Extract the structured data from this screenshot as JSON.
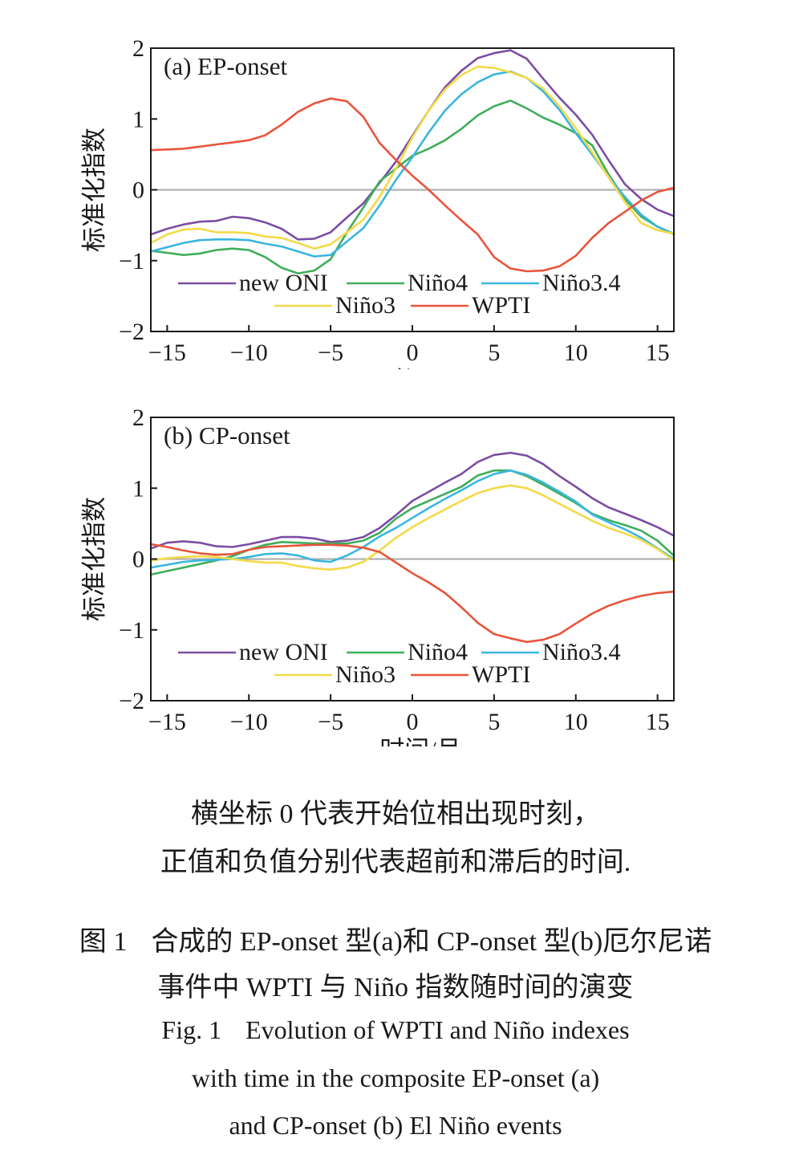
{
  "colors": {
    "new ONI": "#7b4ea3",
    "Niño4": "#3fae5a",
    "Niño3.4": "#3ab6df",
    "Niño3": "#f2da48",
    "WPTI": "#e8553c",
    "zero_line": "#aaaaaa",
    "axis": "#1a1a1a"
  },
  "chart_data": [
    {
      "type": "line",
      "panel_label": "(a) EP-onset",
      "xlabel": "时间/月",
      "ylabel": "标准化指数",
      "xlim": [
        -16,
        16
      ],
      "ylim": [
        -2,
        2
      ],
      "xticks": [
        "−15",
        "−10",
        "−5",
        "0",
        "5",
        "10",
        "15"
      ],
      "xtick_values": [
        -15,
        -10,
        -5,
        0,
        5,
        10,
        15
      ],
      "yticks": [
        "2",
        "1",
        "0",
        "−1",
        "−2"
      ],
      "ytick_values": [
        2,
        1,
        0,
        -1,
        -2
      ],
      "zero_line": true,
      "legend": {
        "placement": "bottom",
        "rows": [
          [
            "new ONI",
            "Niño4",
            "Niño3.4"
          ],
          [
            "Niño3",
            "WPTI"
          ]
        ]
      },
      "x": [
        -16,
        -15,
        -14,
        -13,
        -12,
        -11,
        -10,
        -9,
        -8,
        -7,
        -6,
        -5,
        -4,
        -3,
        -2,
        -1,
        0,
        1,
        2,
        3,
        4,
        5,
        6,
        7,
        8,
        9,
        10,
        11,
        12,
        13,
        14,
        15,
        16
      ],
      "series": [
        {
          "name": "new ONI",
          "values": [
            -0.63,
            -0.55,
            -0.49,
            -0.45,
            -0.44,
            -0.38,
            -0.4,
            -0.46,
            -0.55,
            -0.7,
            -0.69,
            -0.6,
            -0.39,
            -0.19,
            0.1,
            0.4,
            0.76,
            1.12,
            1.45,
            1.68,
            1.86,
            1.93,
            1.97,
            1.85,
            1.57,
            1.3,
            1.06,
            0.78,
            0.42,
            0.08,
            -0.13,
            -0.28,
            -0.37
          ]
        },
        {
          "name": "Niño4",
          "values": [
            -0.86,
            -0.89,
            -0.92,
            -0.9,
            -0.85,
            -0.83,
            -0.85,
            -0.95,
            -1.1,
            -1.18,
            -1.14,
            -0.98,
            -0.6,
            -0.25,
            0.12,
            0.3,
            0.48,
            0.58,
            0.7,
            0.86,
            1.05,
            1.18,
            1.26,
            1.15,
            1.02,
            0.92,
            0.8,
            0.63,
            0.22,
            -0.13,
            -0.38,
            -0.52,
            -0.63
          ]
        },
        {
          "name": "Niño3.4",
          "values": [
            -0.87,
            -0.81,
            -0.75,
            -0.71,
            -0.7,
            -0.7,
            -0.71,
            -0.76,
            -0.8,
            -0.87,
            -0.94,
            -0.92,
            -0.73,
            -0.54,
            -0.22,
            0.14,
            0.46,
            0.81,
            1.12,
            1.35,
            1.52,
            1.63,
            1.67,
            1.58,
            1.39,
            1.13,
            0.8,
            0.5,
            0.19,
            -0.1,
            -0.35,
            -0.52,
            -0.62
          ]
        },
        {
          "name": "Niño3",
          "values": [
            -0.75,
            -0.63,
            -0.56,
            -0.55,
            -0.6,
            -0.6,
            -0.61,
            -0.66,
            -0.68,
            -0.75,
            -0.83,
            -0.77,
            -0.6,
            -0.42,
            -0.1,
            0.3,
            0.74,
            1.12,
            1.42,
            1.62,
            1.74,
            1.72,
            1.66,
            1.58,
            1.43,
            1.18,
            0.87,
            0.53,
            0.18,
            -0.17,
            -0.47,
            -0.57,
            -0.62
          ]
        },
        {
          "name": "WPTI",
          "values": [
            0.56,
            0.57,
            0.58,
            0.61,
            0.64,
            0.67,
            0.7,
            0.77,
            0.92,
            1.1,
            1.22,
            1.29,
            1.25,
            1.03,
            0.66,
            0.42,
            0.2,
            0.0,
            -0.22,
            -0.43,
            -0.63,
            -0.95,
            -1.11,
            -1.15,
            -1.14,
            -1.08,
            -0.93,
            -0.68,
            -0.47,
            -0.31,
            -0.15,
            -0.03,
            0.03
          ]
        }
      ]
    },
    {
      "type": "line",
      "panel_label": "(b) CP-onset",
      "xlabel": "时间/月",
      "ylabel": "标准化指数",
      "xlim": [
        -16,
        16
      ],
      "ylim": [
        -2,
        2
      ],
      "xticks": [
        "−15",
        "−10",
        "−5",
        "0",
        "5",
        "10",
        "15"
      ],
      "xtick_values": [
        -15,
        -10,
        -5,
        0,
        5,
        10,
        15
      ],
      "yticks": [
        "2",
        "1",
        "0",
        "−1",
        "−2"
      ],
      "ytick_values": [
        2,
        1,
        0,
        -1,
        -2
      ],
      "zero_line": true,
      "legend": {
        "placement": "bottom",
        "rows": [
          [
            "new ONI",
            "Niño4",
            "Niño3.4"
          ],
          [
            "Niño3",
            "WPTI"
          ]
        ]
      },
      "x": [
        -16,
        -15,
        -14,
        -13,
        -12,
        -11,
        -10,
        -9,
        -8,
        -7,
        -6,
        -5,
        -4,
        -3,
        -2,
        -1,
        0,
        1,
        2,
        3,
        4,
        5,
        6,
        7,
        8,
        9,
        10,
        11,
        12,
        13,
        14,
        15,
        16
      ],
      "series": [
        {
          "name": "new ONI",
          "values": [
            0.15,
            0.23,
            0.25,
            0.23,
            0.18,
            0.17,
            0.21,
            0.26,
            0.31,
            0.31,
            0.29,
            0.24,
            0.26,
            0.31,
            0.44,
            0.62,
            0.82,
            0.95,
            1.08,
            1.2,
            1.37,
            1.47,
            1.5,
            1.46,
            1.34,
            1.17,
            1.02,
            0.86,
            0.73,
            0.64,
            0.55,
            0.45,
            0.33
          ]
        },
        {
          "name": "Niño4",
          "values": [
            -0.22,
            -0.17,
            -0.12,
            -0.07,
            -0.02,
            0.04,
            0.13,
            0.2,
            0.24,
            0.23,
            0.22,
            0.22,
            0.22,
            0.26,
            0.37,
            0.57,
            0.72,
            0.82,
            0.92,
            1.02,
            1.18,
            1.25,
            1.25,
            1.17,
            1.05,
            0.92,
            0.79,
            0.64,
            0.55,
            0.48,
            0.4,
            0.26,
            0.05
          ]
        },
        {
          "name": "Niño3.4",
          "values": [
            -0.12,
            -0.08,
            -0.04,
            -0.02,
            -0.01,
            0.0,
            0.03,
            0.07,
            0.08,
            0.05,
            -0.02,
            -0.04,
            0.05,
            0.17,
            0.32,
            0.44,
            0.58,
            0.72,
            0.85,
            0.97,
            1.1,
            1.2,
            1.25,
            1.19,
            1.08,
            0.95,
            0.81,
            0.63,
            0.52,
            0.42,
            0.3,
            0.15,
            0.0
          ]
        },
        {
          "name": "Niño3",
          "values": [
            -0.02,
            0.01,
            0.03,
            0.04,
            0.03,
            0.0,
            -0.03,
            -0.05,
            -0.05,
            -0.1,
            -0.13,
            -0.15,
            -0.12,
            -0.04,
            0.12,
            0.3,
            0.45,
            0.58,
            0.7,
            0.82,
            0.93,
            1.0,
            1.04,
            1.0,
            0.9,
            0.78,
            0.66,
            0.54,
            0.44,
            0.36,
            0.27,
            0.14,
            -0.02
          ]
        },
        {
          "name": "WPTI",
          "values": [
            0.21,
            0.17,
            0.12,
            0.08,
            0.06,
            0.07,
            0.13,
            0.17,
            0.18,
            0.19,
            0.2,
            0.2,
            0.19,
            0.16,
            0.1,
            -0.05,
            -0.2,
            -0.33,
            -0.48,
            -0.68,
            -0.9,
            -1.06,
            -1.12,
            -1.17,
            -1.14,
            -1.06,
            -0.91,
            -0.77,
            -0.66,
            -0.58,
            -0.52,
            -0.48,
            -0.46
          ]
        }
      ]
    }
  ],
  "caption": {
    "note_line1": "横坐标 0 代表开始位相出现时刻，",
    "note_line2": "正值和负值分别代表超前和滞后的时间.",
    "fig_zh_num": "图 1",
    "fig_zh_line1": "合成的 EP-onset 型(a)和 CP-onset 型(b)厄尔尼诺",
    "fig_zh_line2": "事件中 WPTI 与 Niño 指数随时间的演变",
    "fig_en_num": "Fig. 1",
    "fig_en_line1": "Evolution of WPTI and Niño indexes",
    "fig_en_line2": "with time in the composite EP-onset (a)",
    "fig_en_line3": "and CP-onset (b) El Niño events"
  }
}
